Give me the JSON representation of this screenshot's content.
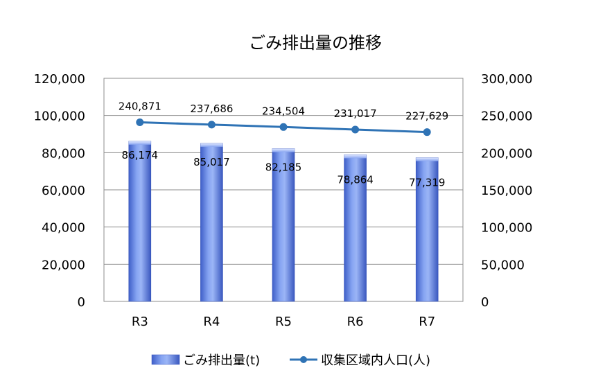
{
  "chart_data": {
    "type": "bar",
    "title": "ごみ排出量の推移",
    "categories": [
      "R3",
      "R4",
      "R5",
      "R6",
      "R7"
    ],
    "series": [
      {
        "name": "ごみ排出量(t)",
        "type": "bar",
        "axis": "left",
        "values": [
          86174,
          85017,
          82185,
          78864,
          77319
        ],
        "labels": [
          "86,174",
          "85,017",
          "82,185",
          "78,864",
          "77,319"
        ],
        "color": "#6f8fe8"
      },
      {
        "name": "収集区域内人口(人)",
        "type": "line",
        "axis": "right",
        "values": [
          240871,
          237686,
          234504,
          231017,
          227629
        ],
        "labels": [
          "240,871",
          "237,686",
          "234,504",
          "231,017",
          "227,629"
        ],
        "color": "#2f73b5"
      }
    ],
    "y_left": {
      "ylim": [
        0,
        120000
      ],
      "ticks": [
        "0",
        "20,000",
        "40,000",
        "60,000",
        "80,000",
        "100,000",
        "120,000"
      ]
    },
    "y_right": {
      "ylim": [
        0,
        300000
      ],
      "ticks": [
        "0",
        "50,000",
        "100,000",
        "150,000",
        "200,000",
        "250,000",
        "300,000"
      ]
    },
    "grid": true,
    "legend": "bottom"
  }
}
